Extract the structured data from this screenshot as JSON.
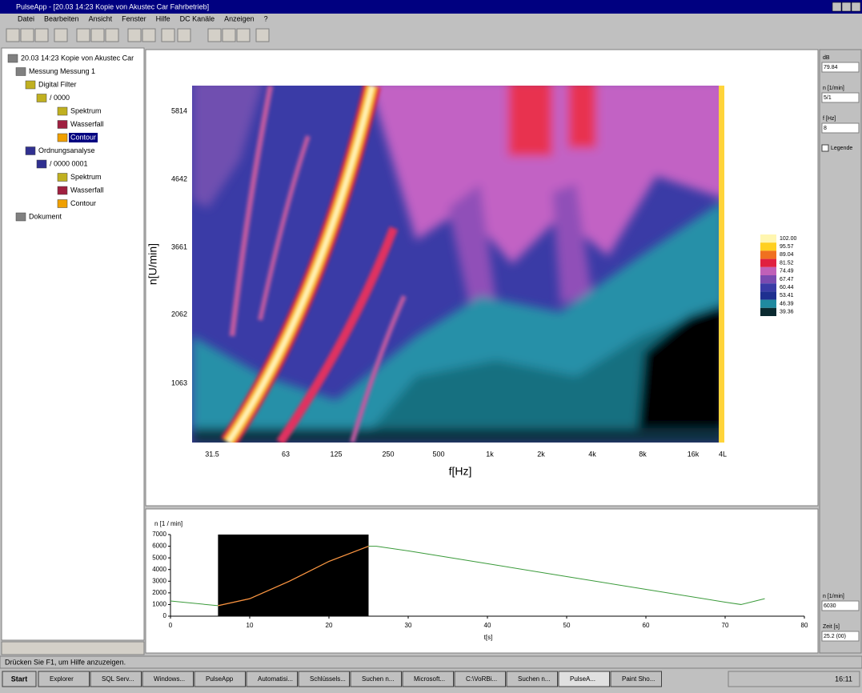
{
  "window": {
    "title": "PulseApp - [20.03 14:23 Kopie von Akustec Car Fahrbetrieb]",
    "menu": [
      "Datei",
      "Bearbeiten",
      "Ansicht",
      "Fenster",
      "Hilfe",
      "DC Kanäle",
      "Anzeigen",
      "?"
    ]
  },
  "tree": [
    "20.03 14:23 Kopie von Akustec Car",
    "Messung Messung 1",
    "Digital Filter",
    "/ 0000",
    "Spektrum",
    "Wasserfall",
    "Contour",
    "Ordnungsanalyse",
    "/ 0000 0001",
    "Spektrum",
    "Wasserfall",
    "Contour",
    "Dokument"
  ],
  "spectrogram": {
    "y_label": "n[U/min]",
    "x_label": "f[Hz]",
    "yticks": [
      "5814",
      "4642",
      "3661",
      "2062",
      "1063"
    ],
    "xticks": [
      "31.5",
      "63",
      "125",
      "250",
      "500",
      "1k",
      "2k",
      "4k",
      "8k",
      "16k",
      "4L"
    ],
    "legend": [
      "102.00",
      "95.57",
      "89.04",
      "81.52",
      "74.49",
      "67.47",
      "60.44",
      "53.41",
      "46.39",
      "39.36"
    ]
  },
  "trend": {
    "y_label": "n [1 / min]",
    "x_label": "t[s]",
    "x": [
      0,
      6,
      10,
      15,
      20,
      25,
      26,
      30,
      40,
      50,
      60,
      70,
      72,
      75
    ],
    "y": [
      1300,
      900,
      1500,
      3000,
      4700,
      6000,
      6000,
      5600,
      4500,
      3400,
      2300,
      1200,
      1000,
      1500
    ],
    "selection_x": [
      6,
      25
    ],
    "xlim": [
      0,
      80
    ],
    "ylim": [
      0,
      7000
    ],
    "xticks": [
      0,
      10,
      20,
      30,
      40,
      50,
      60,
      70,
      80
    ],
    "yticks": [
      0,
      1000,
      2000,
      3000,
      4000,
      5000,
      6000,
      7000
    ]
  },
  "side_panel": {
    "fields": [
      {
        "label": "dB",
        "value": "79.84"
      },
      {
        "label": "n [1/min]",
        "value": "5/1"
      },
      {
        "label": "f [Hz]",
        "value": "8"
      }
    ],
    "checkbox": "Legende",
    "bottom_fields": [
      {
        "label": "n [1/min]",
        "value": "6030"
      },
      {
        "label": "Zeit [s]",
        "value": "25.2 (00)"
      }
    ]
  },
  "status_bar": "Drücken Sie F1, um Hilfe anzuzeigen.",
  "taskbar": {
    "start": "Start",
    "tasks": [
      "Explorer",
      "SQL Serv...",
      "Windows...",
      "PulseApp",
      "Automatisi...",
      "Schlüssels...",
      "Suchen n...",
      "Microsoft...",
      "C:\\VoRBi...",
      "Suchen n...",
      "PulseA...",
      "Paint Sho..."
    ],
    "clock": "16:11"
  }
}
